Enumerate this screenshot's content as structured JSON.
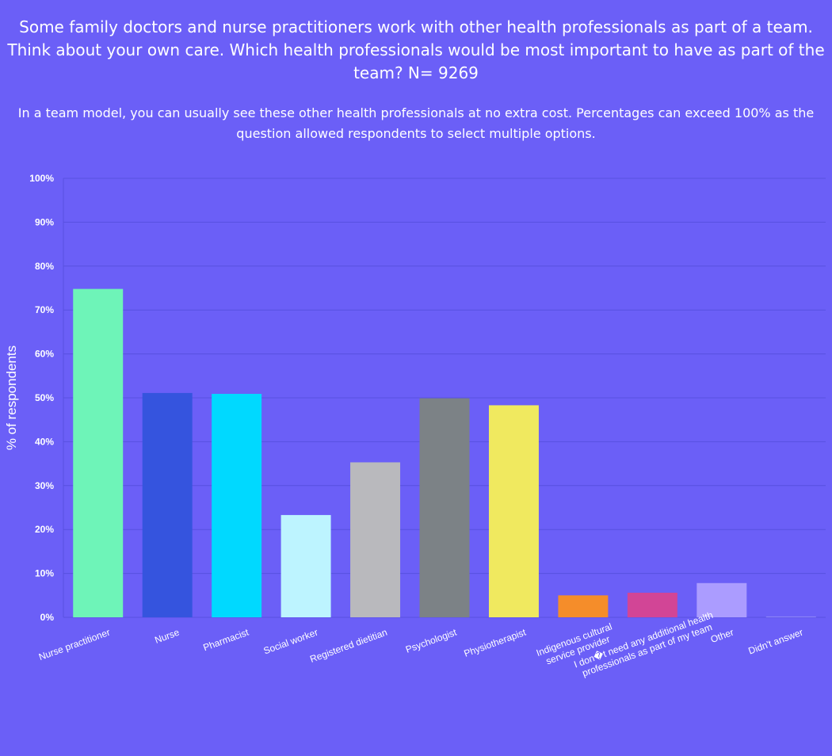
{
  "header": {
    "title": "Some family doctors and nurse practitioners work with other health professionals as part of a team. Think about your own care. Which health professionals would be most important to have as part of the team? N= 9269",
    "subtitle": "In a team model, you can usually see these other health professionals at no extra cost. Percentages can exceed 100% as the question allowed respondents to select multiple options."
  },
  "chart_data": {
    "type": "bar",
    "ylabel": "% of respondents",
    "ylim": [
      0,
      100
    ],
    "yticks": [
      "0%",
      "10%",
      "20%",
      "30%",
      "40%",
      "50%",
      "60%",
      "70%",
      "80%",
      "90%",
      "100%"
    ],
    "grid": true,
    "categories": [
      [
        "Nurse practitioner"
      ],
      [
        "Nurse"
      ],
      [
        "Pharmacist"
      ],
      [
        "Social worker"
      ],
      [
        "Registered dietitian"
      ],
      [
        "Psychologist"
      ],
      [
        "Physiotherapist"
      ],
      [
        "Indigenous cultural",
        "service provider"
      ],
      [
        "I don�t need any additional health",
        "professionals as part of my team"
      ],
      [
        "Other"
      ],
      [
        "Didn't answer"
      ]
    ],
    "values": [
      74.8,
      51.1,
      50.9,
      23.3,
      35.3,
      49.9,
      48.3,
      5.0,
      5.6,
      7.8,
      0.2
    ],
    "colors": [
      "#6ef4b8",
      "#3554de",
      "#00d9ff",
      "#bdf4ff",
      "#b9b9bd",
      "#7c8286",
      "#f0e95f",
      "#f58d2a",
      "#d24596",
      "#ab9cff",
      "#8d85f7"
    ]
  }
}
